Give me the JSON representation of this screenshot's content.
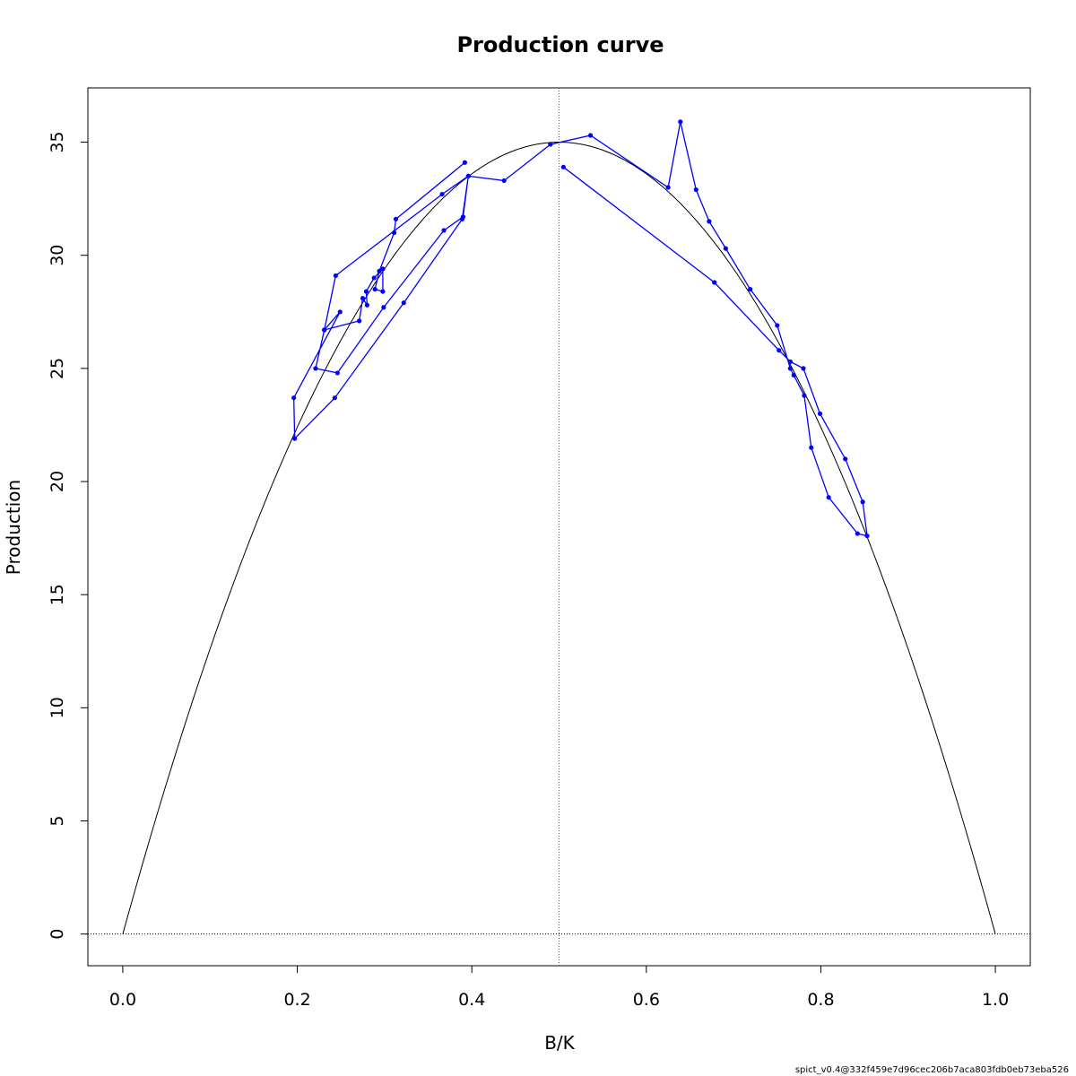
{
  "chart_data": {
    "type": "line",
    "title": "Production curve",
    "xlabel": "B/K",
    "ylabel": "Production",
    "xlim": [
      -0.04,
      1.04
    ],
    "ylim": [
      -1.4,
      37.4
    ],
    "xticks": [
      "0.0",
      "0.2",
      "0.4",
      "0.6",
      "0.8",
      "1.0"
    ],
    "yticks": [
      "0",
      "5",
      "10",
      "15",
      "20",
      "25",
      "30",
      "35"
    ],
    "reference_lines": {
      "vertical_x": 0.5,
      "horizontal_y": 0
    },
    "curve": {
      "name": "",
      "type": "parabola",
      "x_from": 0,
      "x_to": 1,
      "peak_x": 0.5,
      "peak_y": 35.0,
      "color": "#000000"
    },
    "series": [
      {
        "name": "",
        "color": "#0000ff",
        "points": [
          [
            0.392,
            34.1
          ],
          [
            0.313,
            31.6
          ],
          [
            0.311,
            31.0
          ],
          [
            0.294,
            29.3
          ],
          [
            0.289,
            28.5
          ],
          [
            0.298,
            28.4
          ],
          [
            0.298,
            29.4
          ],
          [
            0.288,
            29.0
          ],
          [
            0.279,
            28.4
          ],
          [
            0.28,
            27.8
          ],
          [
            0.275,
            28.1
          ],
          [
            0.271,
            27.1
          ],
          [
            0.231,
            26.7
          ],
          [
            0.244,
            29.1
          ],
          [
            0.366,
            32.7
          ],
          [
            0.396,
            33.5
          ],
          [
            0.39,
            31.7
          ],
          [
            0.368,
            31.1
          ],
          [
            0.299,
            27.7
          ],
          [
            0.246,
            24.8
          ],
          [
            0.221,
            25.0
          ],
          [
            0.231,
            26.7
          ],
          [
            0.249,
            27.5
          ],
          [
            0.196,
            23.7
          ],
          [
            0.197,
            21.9
          ],
          [
            0.243,
            23.7
          ],
          [
            0.322,
            27.9
          ],
          [
            0.389,
            31.6
          ],
          [
            0.396,
            33.5
          ],
          [
            0.437,
            33.3
          ],
          [
            0.49,
            34.9
          ],
          [
            0.536,
            35.3
          ],
          [
            0.625,
            33.0
          ],
          [
            0.639,
            35.9
          ],
          [
            0.657,
            32.9
          ],
          [
            0.672,
            31.5
          ],
          [
            0.691,
            30.3
          ],
          [
            0.719,
            28.5
          ],
          [
            0.75,
            26.9
          ],
          [
            0.765,
            25.0
          ],
          [
            0.769,
            24.7
          ],
          [
            0.781,
            23.8
          ],
          [
            0.789,
            21.5
          ],
          [
            0.809,
            19.3
          ],
          [
            0.842,
            17.7
          ],
          [
            0.853,
            17.6
          ],
          [
            0.848,
            19.1
          ],
          [
            0.828,
            21.0
          ],
          [
            0.799,
            23.0
          ],
          [
            0.78,
            25.0
          ],
          [
            0.765,
            25.3
          ],
          [
            0.752,
            25.8
          ],
          [
            0.678,
            28.8
          ],
          [
            0.505,
            33.9
          ]
        ]
      }
    ],
    "grid": false,
    "legend": false
  },
  "footer_text": "spict_v0.4@332f459e7d96cec206b7aca803fdb0eb73eba526"
}
